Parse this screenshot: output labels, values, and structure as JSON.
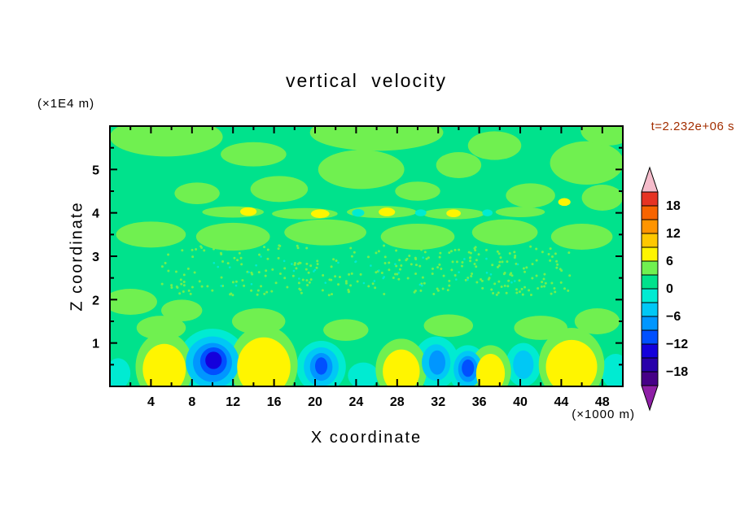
{
  "chart_data": {
    "type": "heatmap",
    "title": "vertical velocity",
    "xlabel": "X coordinate",
    "ylabel": "Z coordinate",
    "x_unit_label": "(×1000 m)",
    "y_unit_label": "(×1E4 m)",
    "time_annotation": "t=2.232e+06 s",
    "time_color": "#A32E00",
    "xlim": [
      0,
      50
    ],
    "ylim": [
      0,
      6
    ],
    "x_major_ticks": [
      4,
      8,
      12,
      16,
      20,
      24,
      28,
      32,
      36,
      40,
      44,
      48
    ],
    "x_minor_step": 2,
    "y_major_ticks": [
      1,
      2,
      3,
      4,
      5
    ],
    "y_minor_step": 0.5,
    "grid": false,
    "legend_position": "right-colorbar",
    "colorbar": {
      "labels": [
        18,
        12,
        6,
        0,
        -6,
        -12,
        -18
      ],
      "level_max": 21,
      "level_step": 3,
      "colors_top_to_bottom": [
        "#E63323",
        "#F76400",
        "#FF9400",
        "#FFC800",
        "#FFF500",
        "#70F050",
        "#00E28C",
        "#00EBD2",
        "#00C8F5",
        "#0096FF",
        "#0050FF",
        "#1400DC",
        "#2800AA",
        "#460087"
      ],
      "arrow_top": "#F5BCCB",
      "arrow_bottom": "#8E1FA6"
    },
    "palette": {
      "bg": "#00E28C",
      "g2": "#70F050",
      "yel": "#FFF500",
      "tq": "#00EBD2",
      "cyn": "#00C8F5",
      "blu": "#0096FF",
      "dbl": "#0050FF",
      "nvy": "#1400DC"
    },
    "features": [
      {
        "c": "g2",
        "x": 5.5,
        "z": 5.75,
        "rx": 5.5,
        "rz": 0.45
      },
      {
        "c": "g2",
        "x": 14,
        "z": 5.35,
        "rx": 3.2,
        "rz": 0.28
      },
      {
        "c": "g2",
        "x": 26,
        "z": 5.85,
        "rx": 6.5,
        "rz": 0.42
      },
      {
        "c": "g2",
        "x": 24.5,
        "z": 5.0,
        "rx": 4.2,
        "rz": 0.45
      },
      {
        "c": "g2",
        "x": 34,
        "z": 5.1,
        "rx": 2.2,
        "rz": 0.3
      },
      {
        "c": "g2",
        "x": 37.5,
        "z": 5.55,
        "rx": 2.6,
        "rz": 0.33
      },
      {
        "c": "g2",
        "x": 46.5,
        "z": 5.15,
        "rx": 3.6,
        "rz": 0.5
      },
      {
        "c": "g2",
        "x": 48.5,
        "z": 5.9,
        "rx": 2.6,
        "rz": 0.35
      },
      {
        "c": "g2",
        "x": 8.5,
        "z": 4.45,
        "rx": 2.2,
        "rz": 0.25
      },
      {
        "c": "g2",
        "x": 16.5,
        "z": 4.55,
        "rx": 2.8,
        "rz": 0.3
      },
      {
        "c": "g2",
        "x": 30,
        "z": 4.5,
        "rx": 2.2,
        "rz": 0.22
      },
      {
        "c": "g2",
        "x": 41,
        "z": 4.4,
        "rx": 2.4,
        "rz": 0.28
      },
      {
        "c": "g2",
        "x": 48,
        "z": 4.35,
        "rx": 2.0,
        "rz": 0.3
      },
      {
        "c": "g2",
        "x": 12,
        "z": 4.02,
        "rx": 3.0,
        "rz": 0.13
      },
      {
        "c": "g2",
        "x": 19,
        "z": 3.98,
        "rx": 3.2,
        "rz": 0.13
      },
      {
        "c": "g2",
        "x": 26.5,
        "z": 4.02,
        "rx": 3.4,
        "rz": 0.14
      },
      {
        "c": "g2",
        "x": 33.5,
        "z": 3.98,
        "rx": 3.0,
        "rz": 0.13
      },
      {
        "c": "g2",
        "x": 40,
        "z": 4.02,
        "rx": 2.4,
        "rz": 0.12
      },
      {
        "c": "g2",
        "x": 4,
        "z": 3.5,
        "rx": 3.4,
        "rz": 0.3
      },
      {
        "c": "g2",
        "x": 12,
        "z": 3.45,
        "rx": 3.6,
        "rz": 0.32
      },
      {
        "c": "g2",
        "x": 21,
        "z": 3.55,
        "rx": 4.0,
        "rz": 0.3
      },
      {
        "c": "g2",
        "x": 30,
        "z": 3.45,
        "rx": 3.6,
        "rz": 0.3
      },
      {
        "c": "g2",
        "x": 38.5,
        "z": 3.55,
        "rx": 3.2,
        "rz": 0.3
      },
      {
        "c": "g2",
        "x": 46,
        "z": 3.45,
        "rx": 3.0,
        "rz": 0.3
      },
      {
        "c": "g2",
        "x": 2,
        "z": 1.95,
        "rx": 2.6,
        "rz": 0.3
      },
      {
        "c": "g2",
        "x": 7,
        "z": 1.75,
        "rx": 2.0,
        "rz": 0.25
      },
      {
        "c": "g2",
        "x": 5,
        "z": 1.35,
        "rx": 2.4,
        "rz": 0.28
      },
      {
        "c": "g2",
        "x": 14.5,
        "z": 1.5,
        "rx": 2.6,
        "rz": 0.3
      },
      {
        "c": "g2",
        "x": 23,
        "z": 1.3,
        "rx": 2.2,
        "rz": 0.25
      },
      {
        "c": "g2",
        "x": 33,
        "z": 1.4,
        "rx": 2.4,
        "rz": 0.26
      },
      {
        "c": "g2",
        "x": 42,
        "z": 1.35,
        "rx": 2.6,
        "rz": 0.28
      },
      {
        "c": "g2",
        "x": 47.5,
        "z": 1.5,
        "rx": 2.2,
        "rz": 0.3
      },
      {
        "c": "yel",
        "x": 13.5,
        "z": 4.03,
        "rx": 0.8,
        "rz": 0.1
      },
      {
        "c": "yel",
        "x": 20.5,
        "z": 3.98,
        "rx": 0.9,
        "rz": 0.1
      },
      {
        "c": "yel",
        "x": 27,
        "z": 4.02,
        "rx": 0.8,
        "rz": 0.1
      },
      {
        "c": "yel",
        "x": 33.5,
        "z": 3.99,
        "rx": 0.7,
        "rz": 0.09
      },
      {
        "c": "yel",
        "x": 44.3,
        "z": 4.25,
        "rx": 0.6,
        "rz": 0.09
      },
      {
        "c": "tq",
        "x": 24.2,
        "z": 4.0,
        "rx": 0.6,
        "rz": 0.09
      },
      {
        "c": "tq",
        "x": 30.3,
        "z": 4.0,
        "rx": 0.55,
        "rz": 0.08
      },
      {
        "c": "tq",
        "x": 36.8,
        "z": 4.0,
        "rx": 0.5,
        "rz": 0.08
      },
      {
        "c": "tq",
        "x": 10,
        "z": 0.55,
        "rx": 3.4,
        "rz": 0.78
      },
      {
        "c": "tq",
        "x": 20.6,
        "z": 0.45,
        "rx": 2.4,
        "rz": 0.6
      },
      {
        "c": "tq",
        "x": 31.8,
        "z": 0.55,
        "rx": 2.2,
        "rz": 0.6
      },
      {
        "c": "tq",
        "x": 34.9,
        "z": 0.4,
        "rx": 1.9,
        "rz": 0.55
      },
      {
        "c": "tq",
        "x": 40.3,
        "z": 0.5,
        "rx": 1.7,
        "rz": 0.5
      },
      {
        "c": "tq",
        "x": 24.7,
        "z": 0.25,
        "rx": 1.5,
        "rz": 0.3
      },
      {
        "c": "tq",
        "x": 0.8,
        "z": 0.3,
        "rx": 1.2,
        "rz": 0.35
      },
      {
        "c": "tq",
        "x": 49.3,
        "z": 0.35,
        "rx": 1.4,
        "rz": 0.4
      },
      {
        "c": "g2",
        "x": 5.3,
        "z": 0.45,
        "rx": 2.8,
        "rz": 0.8
      },
      {
        "c": "g2",
        "x": 15,
        "z": 0.5,
        "rx": 3.3,
        "rz": 0.9
      },
      {
        "c": "g2",
        "x": 28.4,
        "z": 0.4,
        "rx": 2.5,
        "rz": 0.7
      },
      {
        "c": "g2",
        "x": 37.1,
        "z": 0.35,
        "rx": 2.0,
        "rz": 0.6
      },
      {
        "c": "g2",
        "x": 45,
        "z": 0.5,
        "rx": 3.2,
        "rz": 0.85
      },
      {
        "c": "cyn",
        "x": 10,
        "z": 0.55,
        "rx": 2.6,
        "rz": 0.6
      },
      {
        "c": "cyn",
        "x": 20.6,
        "z": 0.45,
        "rx": 1.7,
        "rz": 0.45
      },
      {
        "c": "cyn",
        "x": 31.8,
        "z": 0.55,
        "rx": 1.4,
        "rz": 0.42
      },
      {
        "c": "cyn",
        "x": 34.9,
        "z": 0.4,
        "rx": 1.4,
        "rz": 0.42
      },
      {
        "c": "cyn",
        "x": 40.3,
        "z": 0.5,
        "rx": 1.0,
        "rz": 0.33
      },
      {
        "c": "blu",
        "x": 10,
        "z": 0.55,
        "rx": 1.9,
        "rz": 0.45
      },
      {
        "c": "blu",
        "x": 20.6,
        "z": 0.45,
        "rx": 1.1,
        "rz": 0.32
      },
      {
        "c": "blu",
        "x": 31.9,
        "z": 0.55,
        "rx": 0.8,
        "rz": 0.28
      },
      {
        "c": "blu",
        "x": 34.9,
        "z": 0.4,
        "rx": 0.95,
        "rz": 0.3
      },
      {
        "c": "dbl",
        "x": 10.1,
        "z": 0.58,
        "rx": 1.3,
        "rz": 0.32
      },
      {
        "c": "dbl",
        "x": 20.6,
        "z": 0.47,
        "rx": 0.6,
        "rz": 0.2
      },
      {
        "c": "dbl",
        "x": 34.9,
        "z": 0.42,
        "rx": 0.6,
        "rz": 0.2
      },
      {
        "c": "nvy",
        "x": 10.1,
        "z": 0.6,
        "rx": 0.8,
        "rz": 0.2
      },
      {
        "c": "yel",
        "x": 5.3,
        "z": 0.4,
        "rx": 2.1,
        "rz": 0.58
      },
      {
        "c": "yel",
        "x": 15,
        "z": 0.45,
        "rx": 2.6,
        "rz": 0.68
      },
      {
        "c": "yel",
        "x": 28.4,
        "z": 0.35,
        "rx": 1.8,
        "rz": 0.5
      },
      {
        "c": "yel",
        "x": 37.1,
        "z": 0.3,
        "rx": 1.4,
        "rz": 0.45
      },
      {
        "c": "yel",
        "x": 45,
        "z": 0.45,
        "rx": 2.5,
        "rz": 0.62
      }
    ],
    "speckles": [
      {
        "x0": 5,
        "x1": 45,
        "z0": 2.1,
        "z1": 3.25,
        "count": 300,
        "r": 1.5,
        "c": "g2"
      },
      {
        "x0": 10,
        "x1": 40,
        "z0": 2.3,
        "z1": 3.0,
        "count": 40,
        "r": 1.3,
        "c": "tq"
      }
    ]
  }
}
